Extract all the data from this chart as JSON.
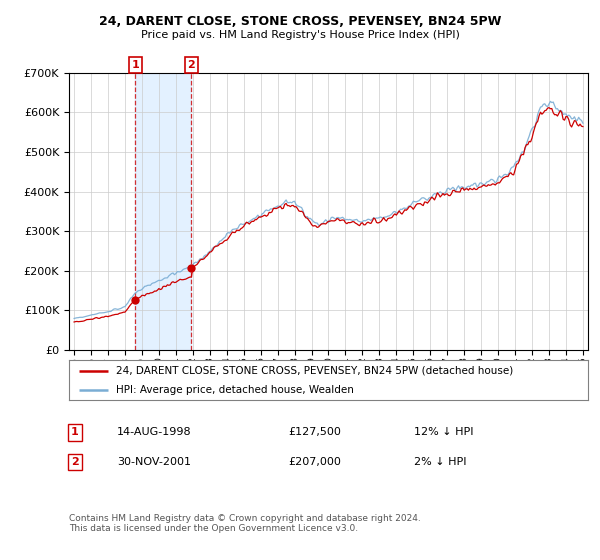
{
  "title": "24, DARENT CLOSE, STONE CROSS, PEVENSEY, BN24 5PW",
  "subtitle": "Price paid vs. HM Land Registry's House Price Index (HPI)",
  "legend_line1": "24, DARENT CLOSE, STONE CROSS, PEVENSEY, BN24 5PW (detached house)",
  "legend_line2": "HPI: Average price, detached house, Wealden",
  "purchase1_date": "14-AUG-1998",
  "purchase1_price": 127500,
  "purchase1_pct": "12% ↓ HPI",
  "purchase1_year": 1998.62,
  "purchase2_date": "30-NOV-2001",
  "purchase2_price": 207000,
  "purchase2_pct": "2% ↓ HPI",
  "purchase2_year": 2001.92,
  "footer": "Contains HM Land Registry data © Crown copyright and database right 2024.\nThis data is licensed under the Open Government Licence v3.0.",
  "red_color": "#cc0000",
  "blue_color": "#7aadd4",
  "bg_highlight": "#ddeeff",
  "ylim": [
    0,
    700000
  ],
  "xlim_start": 1994.7,
  "xlim_end": 2025.3
}
